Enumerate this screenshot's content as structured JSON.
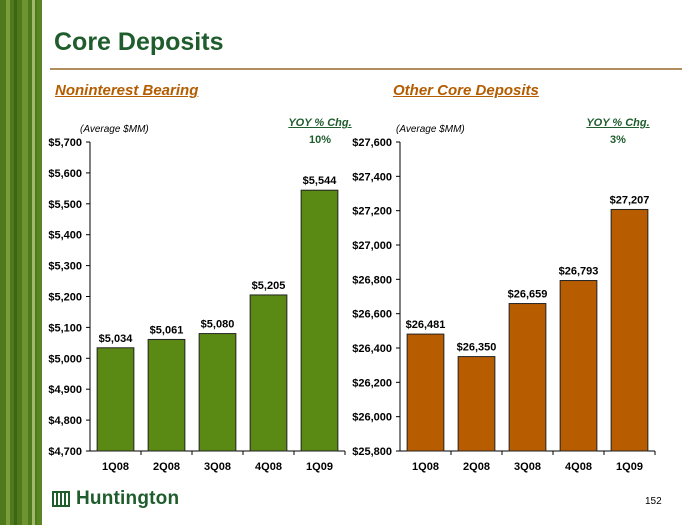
{
  "title": "Core Deposits",
  "colors": {
    "green_bar": "#5a8a14",
    "orange_bar": "#b85c00",
    "brand_green": "#1f5d2d",
    "subtitle_orange": "#b35c00"
  },
  "left_panel": {
    "subtitle": "Noninterest Bearing",
    "unit_note": "(Average $MM)",
    "yoy_label": "YOY % Chg.",
    "yoy_value": "10%"
  },
  "right_panel": {
    "subtitle": "Other Core Deposits",
    "unit_note": "(Average $MM)",
    "yoy_label": "YOY % Chg.",
    "yoy_value": "3%"
  },
  "chart_data": [
    {
      "type": "bar",
      "title": "Noninterest Bearing",
      "categories": [
        "1Q08",
        "2Q08",
        "3Q08",
        "4Q08",
        "1Q09"
      ],
      "values": [
        5034,
        5061,
        5080,
        5205,
        5544
      ],
      "data_labels": [
        "$5,034",
        "$5,061",
        "$5,080",
        "$5,205",
        "$5,544"
      ],
      "ylim": [
        4700,
        5700
      ],
      "yticks": [
        4700,
        4800,
        4900,
        5000,
        5100,
        5200,
        5300,
        5400,
        5500,
        5600,
        5700
      ],
      "ytick_labels": [
        "$4,700",
        "$4,800",
        "$4,900",
        "$5,000",
        "$5,100",
        "$5,200",
        "$5,300",
        "$5,400",
        "$5,500",
        "$5,600",
        "$5,700"
      ],
      "color": "#5a8a14"
    },
    {
      "type": "bar",
      "title": "Other Core Deposits",
      "categories": [
        "1Q08",
        "2Q08",
        "3Q08",
        "4Q08",
        "1Q09"
      ],
      "values": [
        26481,
        26350,
        26659,
        26793,
        27207
      ],
      "data_labels": [
        "$26,481",
        "$26,350",
        "$26,659",
        "$26,793",
        "$27,207"
      ],
      "ylim": [
        25800,
        27600
      ],
      "yticks": [
        25800,
        26000,
        26200,
        26400,
        26600,
        26800,
        27000,
        27200,
        27400,
        27600
      ],
      "ytick_labels": [
        "$25,800",
        "$26,000",
        "$26,200",
        "$26,400",
        "$26,600",
        "$26,800",
        "$27,000",
        "$27,200",
        "$27,400",
        "$27,600"
      ],
      "color": "#b85c00"
    }
  ],
  "logo": {
    "text": "Huntington",
    "icon": "huntington-logo-icon"
  },
  "page_number": "152"
}
